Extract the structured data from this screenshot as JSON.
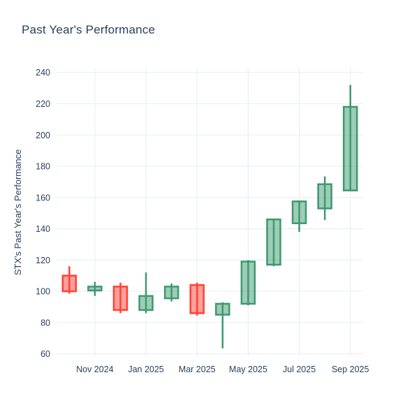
{
  "chart_data": {
    "type": "candlestick",
    "title": "Past Year's Performance",
    "xlabel": "",
    "ylabel": "STX's Past Year's Performance",
    "categories": [
      "Oct 2024",
      "Nov 2024",
      "Dec 2024",
      "Jan 2025",
      "Feb 2025",
      "Mar 2025",
      "Apr 2025",
      "May 2025",
      "Jun 2025",
      "Jul 2025",
      "Aug 2025",
      "Sep 2025"
    ],
    "ohlc": [
      {
        "open": 110,
        "high": 116,
        "low": 98.5,
        "close": 100
      },
      {
        "open": 100.5,
        "high": 106,
        "low": 97,
        "close": 103
      },
      {
        "open": 103,
        "high": 105.5,
        "low": 86,
        "close": 88
      },
      {
        "open": 88,
        "high": 112,
        "low": 86,
        "close": 97
      },
      {
        "open": 95.5,
        "high": 105,
        "low": 93.5,
        "close": 103
      },
      {
        "open": 104,
        "high": 105.5,
        "low": 84.5,
        "close": 86
      },
      {
        "open": 85,
        "high": 93,
        "low": 63.5,
        "close": 92
      },
      {
        "open": 92,
        "high": 120,
        "low": 91,
        "close": 119
      },
      {
        "open": 117,
        "high": 146.5,
        "low": 116,
        "close": 146
      },
      {
        "open": 143.5,
        "high": 158,
        "low": 138,
        "close": 157.5
      },
      {
        "open": 153,
        "high": 173.5,
        "low": 145.5,
        "close": 168.5
      },
      {
        "open": 164.5,
        "high": 232,
        "low": 164,
        "close": 218
      }
    ],
    "y_ticks": [
      60,
      80,
      100,
      120,
      140,
      160,
      180,
      200,
      220,
      240
    ],
    "ylim": [
      58.5,
      243
    ],
    "x_tick_labels": [
      "Nov 2024",
      "Jan 2025",
      "Mar 2025",
      "May 2025",
      "Jul 2025",
      "Sep 2025"
    ],
    "x_tick_candle_indexes": [
      1,
      3,
      5,
      7,
      9,
      11
    ],
    "grid": "on",
    "legend": "none",
    "colors": {
      "increasing_line": "#3D9970",
      "increasing_fill": "rgba(61,153,112,0.5)",
      "decreasing_line": "#FF4136",
      "decreasing_fill": "rgba(255,65,54,0.5)",
      "grid": "#EBF0F8",
      "text": "#2a3f5f",
      "background": "#FFFFFF"
    }
  }
}
